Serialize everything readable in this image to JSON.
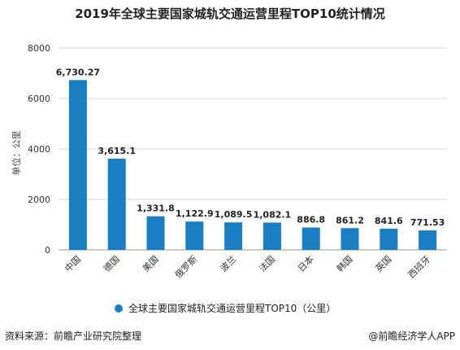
{
  "chart_data": {
    "type": "bar",
    "title": "2019年全球主要国家城轨交通运营里程TOP10统计情况",
    "ylabel": "单位：公里",
    "xlabel": "",
    "ylim": [
      0,
      8000
    ],
    "yticks": [
      0,
      2000,
      4000,
      6000,
      8000
    ],
    "grid": true,
    "legend_position": "bottom",
    "categories": [
      "中国",
      "德国",
      "美国",
      "俄罗斯",
      "波兰",
      "法国",
      "日本",
      "韩国",
      "英国",
      "西班牙"
    ],
    "series": [
      {
        "name": "全球主要国家城轨交通运营里程TOP10（公里）",
        "values": [
          6730.27,
          3615.1,
          1331.8,
          1122.9,
          1089.5,
          1082.1,
          886.8,
          861.2,
          841.6,
          771.53
        ],
        "value_labels": [
          "6,730.27",
          "3,615.1",
          "1,331.8",
          "1,122.9",
          "1,089.5",
          "1,082.1",
          "886.8",
          "861.2",
          "841.6",
          "771.53"
        ],
        "color": "#1a7ec2"
      }
    ]
  },
  "footer": {
    "source": "资料来源：前瞻产业研究院整理",
    "brand": "@前瞻经济学人APP"
  }
}
